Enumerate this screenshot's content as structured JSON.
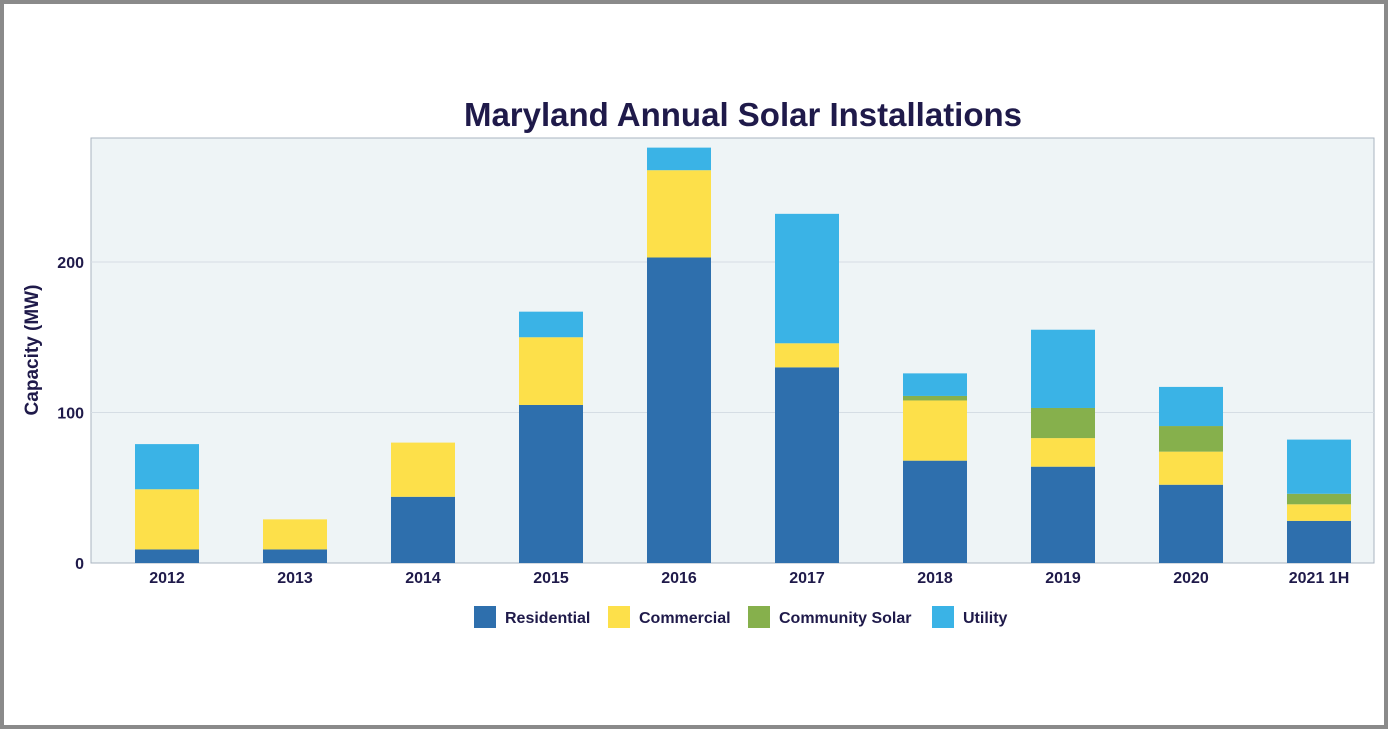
{
  "chart_data": {
    "type": "bar",
    "stacked": true,
    "title": "Maryland Annual Solar Installations",
    "xlabel": "",
    "ylabel": "Capacity (MW)",
    "ylim": [
      0,
      282
    ],
    "yticks": [
      0,
      100,
      200
    ],
    "grid": true,
    "legend_position": "bottom",
    "categories": [
      "2012",
      "2013",
      "2014",
      "2015",
      "2016",
      "2017",
      "2018",
      "2019",
      "2020",
      "2021 1H"
    ],
    "series": [
      {
        "name": "Residential",
        "color": "#2e6fad",
        "values": [
          9,
          9,
          44,
          105,
          203,
          130,
          68,
          64,
          52,
          28
        ]
      },
      {
        "name": "Commercial",
        "color": "#fde04a",
        "values": [
          40,
          20,
          36,
          45,
          58,
          16,
          40,
          19,
          22,
          11
        ]
      },
      {
        "name": "Community Solar",
        "color": "#86b04c",
        "values": [
          0,
          0,
          0,
          0,
          0,
          0,
          3,
          20,
          17,
          7
        ]
      },
      {
        "name": "Utility",
        "color": "#3ab3e6",
        "values": [
          30,
          0,
          0,
          17,
          15,
          86,
          15,
          52,
          26,
          36
        ]
      }
    ]
  }
}
